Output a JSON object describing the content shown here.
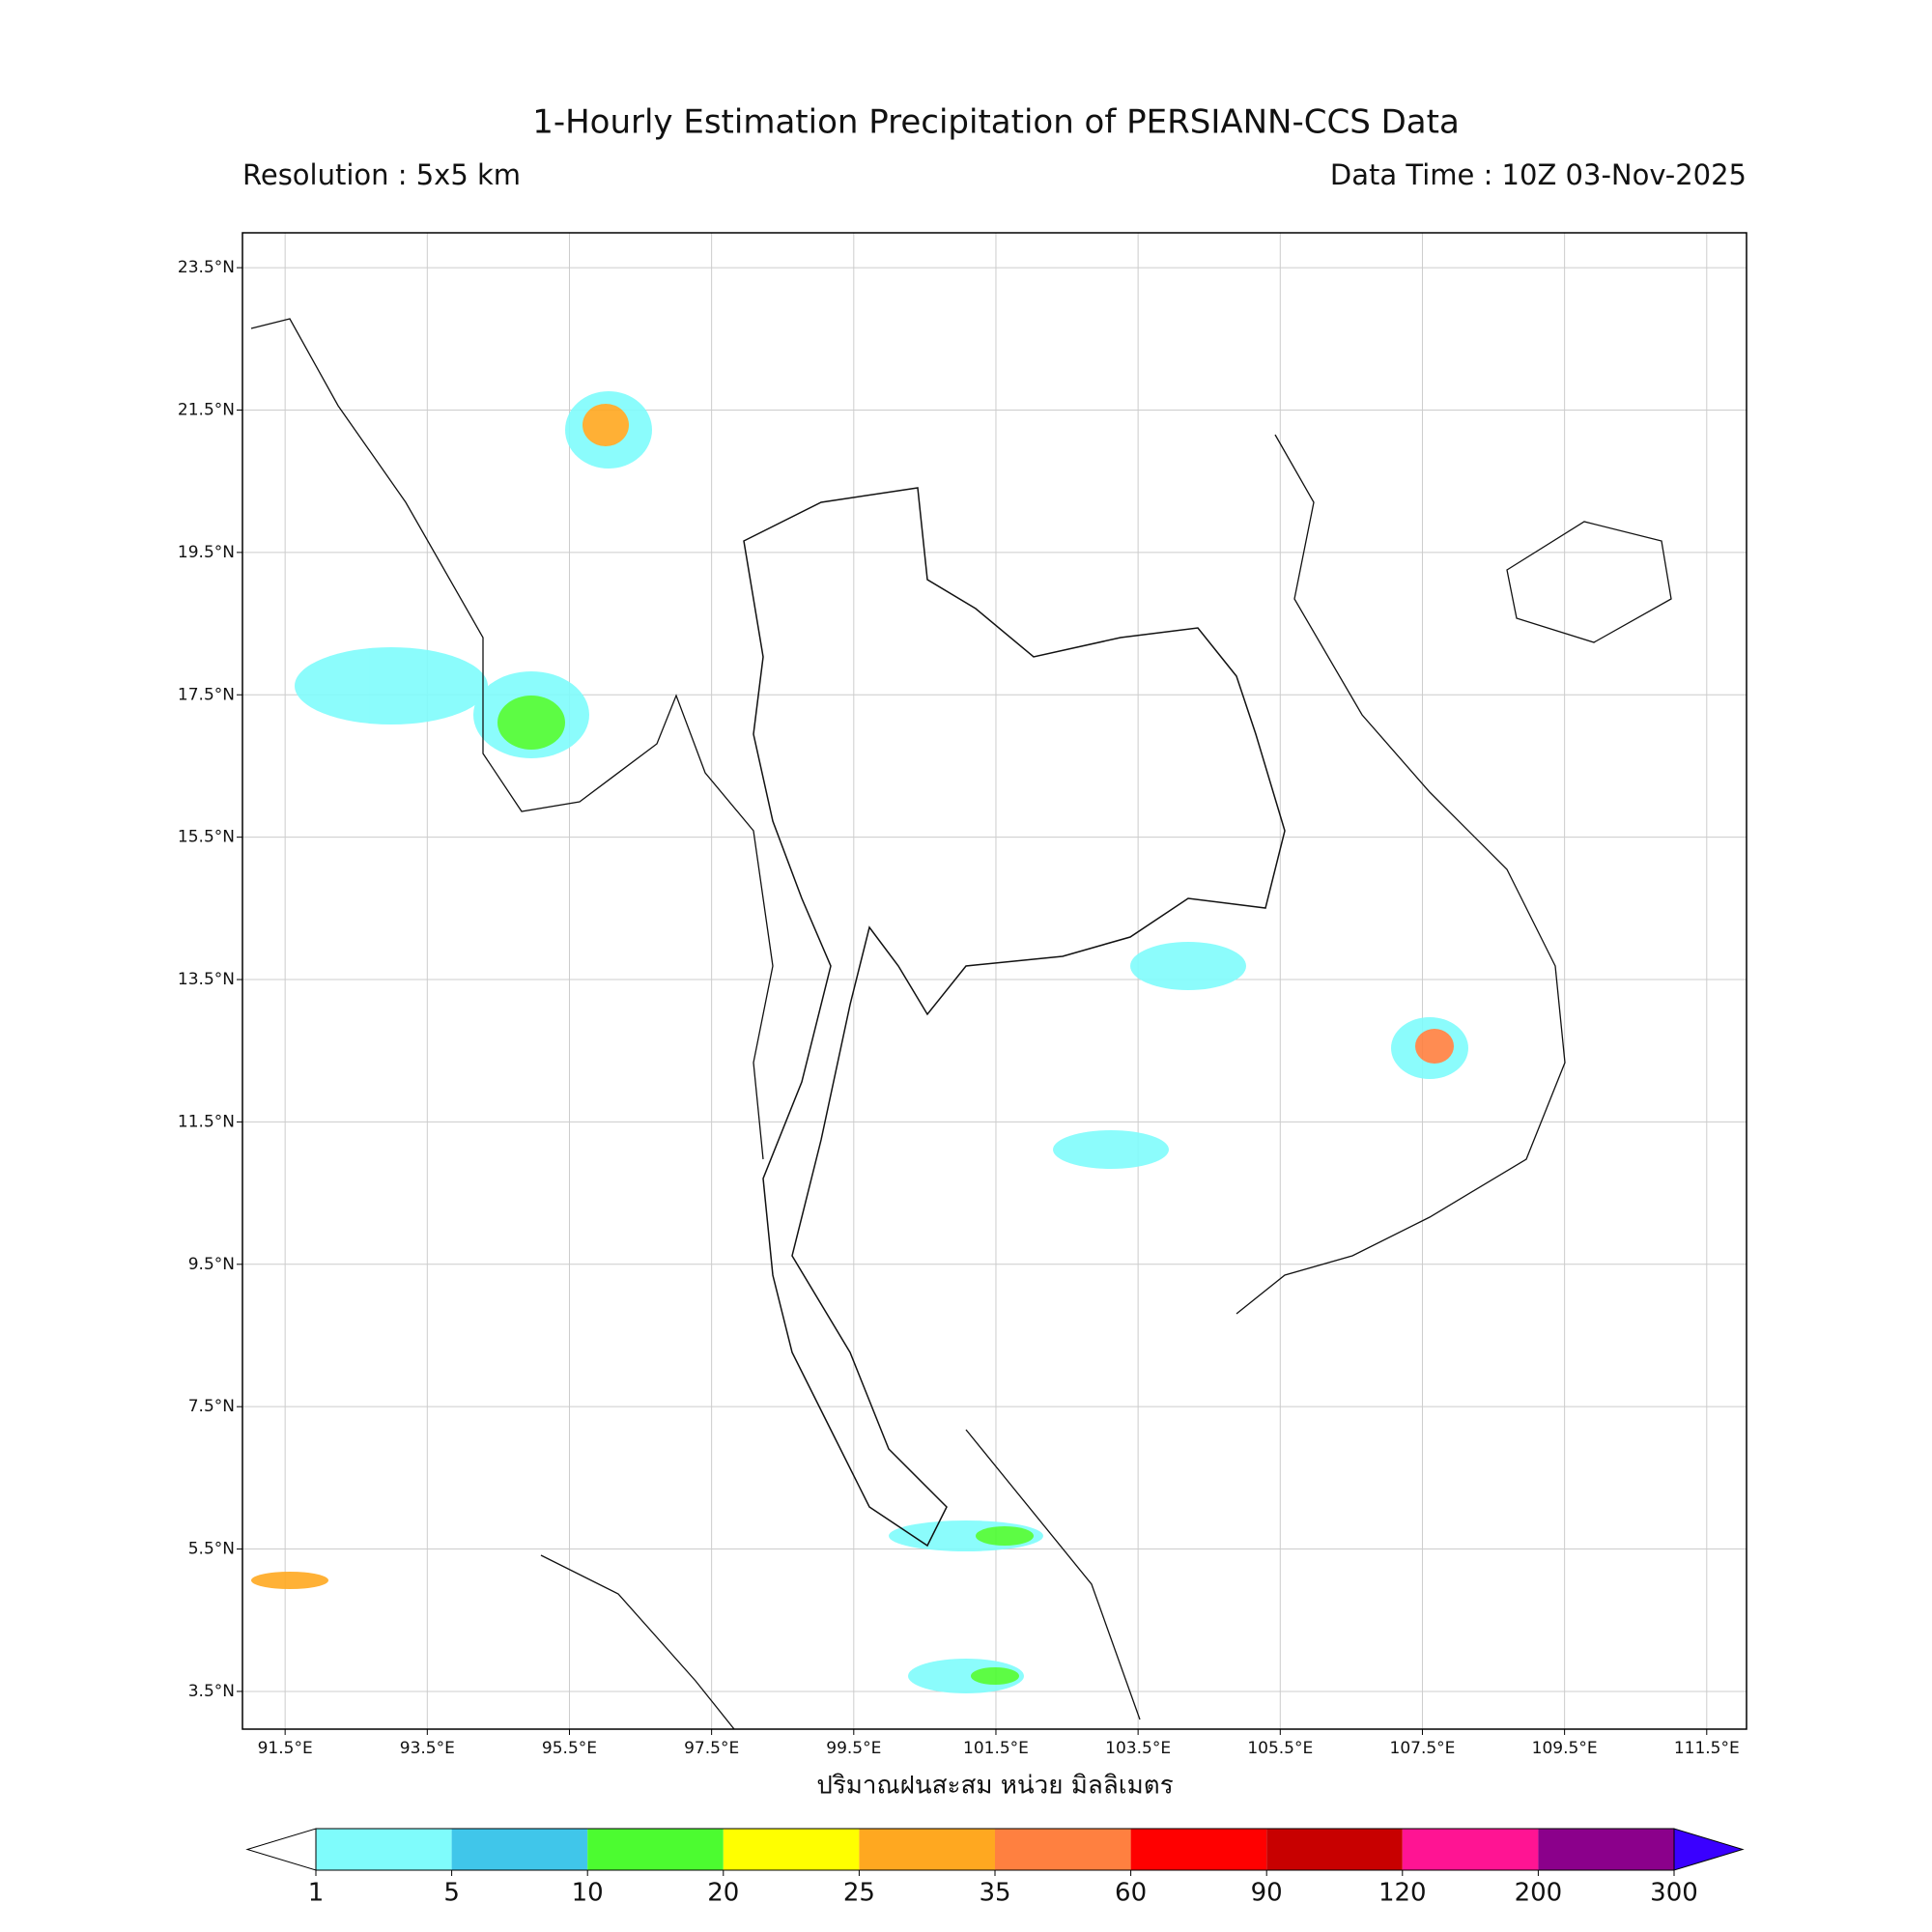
{
  "header": {
    "title": "1-Hourly Estimation Precipitation of PERSIANN-CCS Data",
    "resolution": "Resolution : 5x5 km",
    "data_time": "Data Time : 10Z 03-Nov-2025"
  },
  "map": {
    "lon_lim": [
      90.9,
      112.06
    ],
    "lat_lim": [
      2.97,
      23.99
    ],
    "lon_ticks": [
      {
        "value": 91.5,
        "label": "91.5°E"
      },
      {
        "value": 93.5,
        "label": "93.5°E"
      },
      {
        "value": 95.5,
        "label": "95.5°E"
      },
      {
        "value": 97.5,
        "label": "97.5°E"
      },
      {
        "value": 99.5,
        "label": "99.5°E"
      },
      {
        "value": 101.5,
        "label": "101.5°E"
      },
      {
        "value": 103.5,
        "label": "103.5°E"
      },
      {
        "value": 105.5,
        "label": "105.5°E"
      },
      {
        "value": 107.5,
        "label": "107.5°E"
      },
      {
        "value": 109.5,
        "label": "109.5°E"
      },
      {
        "value": 111.5,
        "label": "111.5°E"
      }
    ],
    "lat_ticks": [
      {
        "value": 23.5,
        "label": "23.5°N"
      },
      {
        "value": 21.5,
        "label": "21.5°N"
      },
      {
        "value": 19.5,
        "label": "19.5°N"
      },
      {
        "value": 17.5,
        "label": "17.5°N"
      },
      {
        "value": 15.5,
        "label": "15.5°N"
      },
      {
        "value": 13.5,
        "label": "13.5°N"
      },
      {
        "value": 11.5,
        "label": "11.5°N"
      },
      {
        "value": 9.5,
        "label": "9.5°N"
      },
      {
        "value": 7.5,
        "label": "7.5°N"
      },
      {
        "value": 5.5,
        "label": "5.5°N"
      },
      {
        "value": 3.5,
        "label": "3.5°N"
      }
    ],
    "grid": true
  },
  "colorbar": {
    "label": "ปริมาณฝนสะสม หน่วย มิลลิเมตร",
    "levels": [
      1,
      5,
      10,
      20,
      25,
      35,
      60,
      90,
      120,
      200,
      300
    ],
    "under_color": "#ffffff",
    "colors": [
      "#7ffcfc",
      "#40c6ea",
      "#4cfc30",
      "#ffff00",
      "#ffa820",
      "#ff8040",
      "#ff0000",
      "#c80000",
      "#ff1493",
      "#8b008b"
    ],
    "over_color": "#3a00ff"
  }
}
